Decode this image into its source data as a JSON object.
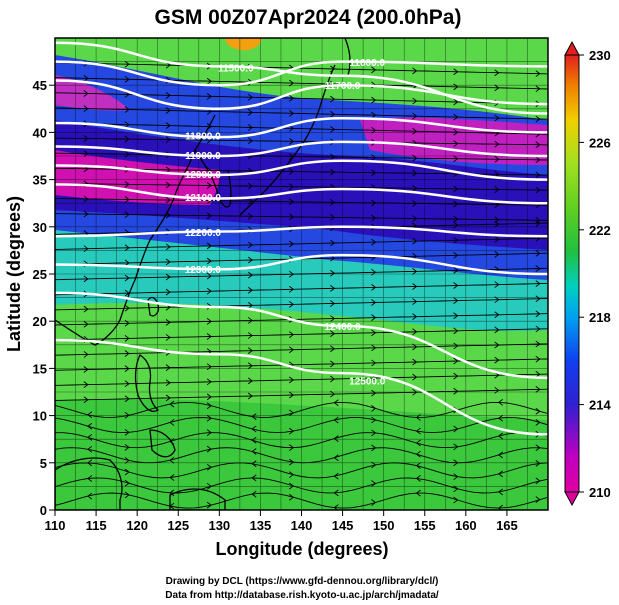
{
  "title": "GSM 00Z07Apr2024 (200.0hPa)",
  "map": {
    "x_axis": {
      "label": "Longitude (degrees)",
      "range": [
        110,
        170
      ],
      "ticks": [
        "110",
        "115",
        "120",
        "125",
        "130",
        "135",
        "140",
        "145",
        "150",
        "155",
        "160",
        "165"
      ]
    },
    "y_axis": {
      "label": "Latitude (degrees)",
      "range": [
        0,
        50
      ],
      "ticks": [
        "0",
        "5",
        "10",
        "15",
        "20",
        "25",
        "30",
        "35",
        "40",
        "45"
      ]
    },
    "field": "temperature (shaded), geopotential height (contours), wind (streamlines)",
    "contours": [
      {
        "label": "11500.0",
        "lat_at_110": 49.5,
        "lat_at_130": 47.0,
        "lat_at_145": 46.0,
        "lat_at_170": 42.0
      },
      {
        "label": "11600.0",
        "lat_at_110": 47.5,
        "lat_at_130": 45.0,
        "lat_at_145": 47.5,
        "lat_at_170": 47.0
      },
      {
        "label": "11700.0",
        "lat_at_110": 45.5,
        "lat_at_130": 42.5,
        "lat_at_145": 45.0,
        "lat_at_170": 43.0
      },
      {
        "label": "11800.0",
        "lat_at_110": 41.0,
        "lat_at_130": 39.5,
        "lat_at_145": 41.5,
        "lat_at_170": 40.0
      },
      {
        "label": "11900.0",
        "lat_at_110": 38.5,
        "lat_at_130": 37.5,
        "lat_at_145": 39.0,
        "lat_at_170": 37.5
      },
      {
        "label": "12000.0",
        "lat_at_110": 36.5,
        "lat_at_130": 35.5,
        "lat_at_145": 37.0,
        "lat_at_170": 35.0
      },
      {
        "label": "12100.0",
        "lat_at_110": 34.5,
        "lat_at_130": 33.0,
        "lat_at_145": 34.0,
        "lat_at_170": 32.5
      },
      {
        "label": "12200.0",
        "lat_at_110": 29.0,
        "lat_at_130": 29.5,
        "lat_at_145": 30.0,
        "lat_at_170": 29.0
      },
      {
        "label": "12300.0",
        "lat_at_110": 26.0,
        "lat_at_130": 25.5,
        "lat_at_145": 27.0,
        "lat_at_170": 25.0
      },
      {
        "label": "12400.0",
        "lat_at_110": 23.0,
        "lat_at_130": 21.5,
        "lat_at_145": 19.5,
        "lat_at_170": 14.0
      },
      {
        "label": "12500.0",
        "lat_at_110": 18.0,
        "lat_at_130": 16.5,
        "lat_at_145": 14.5,
        "lat_at_170": 8.0
      }
    ]
  },
  "colorbar": {
    "ticks": [
      "210",
      "214",
      "218",
      "222",
      "226",
      "230"
    ],
    "range": [
      210,
      230
    ],
    "colors": [
      "#e000a0",
      "#c000c0",
      "#3020d0",
      "#1040f0",
      "#00a0f0",
      "#00d0c0",
      "#20c040",
      "#60d020",
      "#a0e020",
      "#f0d000",
      "#f08000",
      "#e02020"
    ]
  },
  "credits": {
    "line1": "Drawing by DCL (https://www.gfd-dennou.org/library/dcl/)",
    "line2": "Data from http://database.rish.kyoto-u.ac.jp/arch/jmadata/"
  }
}
